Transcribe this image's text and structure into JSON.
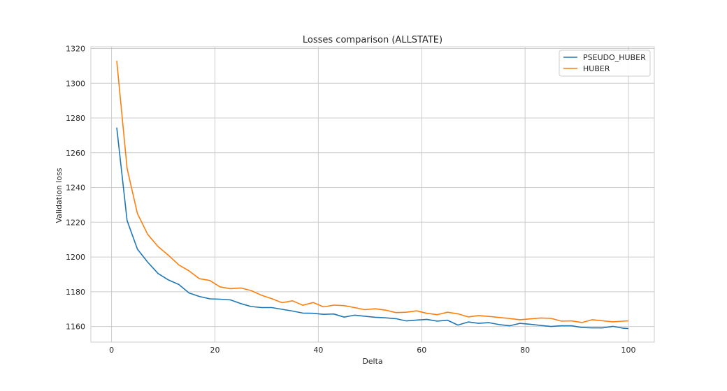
{
  "chart_data": {
    "type": "line",
    "title": "Losses comparison (ALLSTATE)",
    "xlabel": "Delta",
    "ylabel": "Validation loss",
    "xlim": [
      -4,
      105
    ],
    "ylim": [
      1151,
      1321
    ],
    "xticks": [
      0,
      20,
      40,
      60,
      80,
      100
    ],
    "yticks": [
      1160,
      1180,
      1200,
      1220,
      1240,
      1260,
      1280,
      1300,
      1320
    ],
    "grid": true,
    "legend_position": "top-right",
    "x": [
      1,
      3,
      5,
      7,
      9,
      11,
      13,
      15,
      17,
      19,
      21,
      23,
      25,
      27,
      29,
      31,
      33,
      35,
      37,
      39,
      41,
      43,
      45,
      47,
      49,
      51,
      53,
      55,
      57,
      59,
      61,
      63,
      65,
      67,
      69,
      71,
      73,
      75,
      77,
      79,
      81,
      83,
      85,
      87,
      89,
      91,
      93,
      95,
      97,
      99,
      100
    ],
    "series": [
      {
        "name": "PSEUDO_HUBER",
        "color": "#1f77b4",
        "values": [
          1274.5,
          1221.0,
          1204.5,
          1197.0,
          1190.5,
          1186.8,
          1184.2,
          1179.3,
          1177.3,
          1175.9,
          1175.7,
          1175.3,
          1173.2,
          1171.5,
          1170.9,
          1170.9,
          1169.9,
          1168.9,
          1167.7,
          1167.6,
          1167.0,
          1167.2,
          1165.4,
          1166.5,
          1165.9,
          1165.3,
          1165.0,
          1164.5,
          1163.2,
          1163.7,
          1164.1,
          1163.1,
          1163.6,
          1160.8,
          1162.6,
          1161.8,
          1162.2,
          1161.1,
          1160.4,
          1161.8,
          1161.3,
          1160.6,
          1160.0,
          1160.4,
          1160.4,
          1159.4,
          1159.2,
          1159.2,
          1160.1,
          1159.0,
          1158.8
        ]
      },
      {
        "name": "HUBER",
        "color": "#ff7f0e",
        "values": [
          1313.0,
          1251.0,
          1225.0,
          1213.0,
          1206.0,
          1201.0,
          1195.5,
          1192.0,
          1187.5,
          1186.5,
          1182.8,
          1181.8,
          1182.2,
          1180.7,
          1178.0,
          1176.0,
          1173.7,
          1174.8,
          1172.2,
          1173.8,
          1171.3,
          1172.3,
          1172.0,
          1170.9,
          1169.7,
          1170.2,
          1169.4,
          1168.0,
          1168.2,
          1169.0,
          1167.6,
          1166.8,
          1168.2,
          1167.3,
          1165.5,
          1166.3,
          1165.8,
          1165.2,
          1164.6,
          1163.9,
          1164.4,
          1164.9,
          1164.7,
          1163.1,
          1163.2,
          1162.3,
          1163.9,
          1163.3,
          1162.7,
          1163.1,
          1163.2
        ]
      }
    ]
  }
}
